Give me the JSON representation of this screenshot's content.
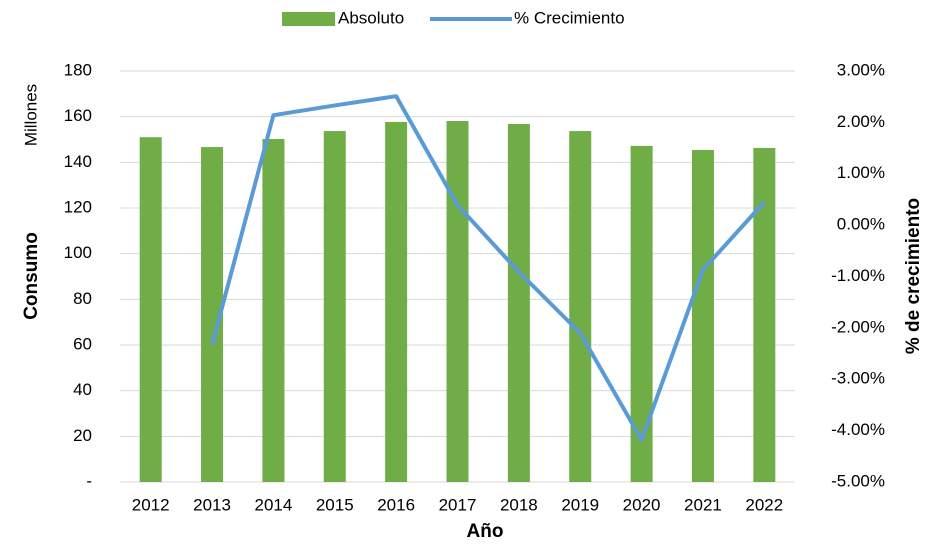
{
  "chart_data": {
    "type": "bar_line",
    "x_label": "Año",
    "y_label": "Consumo",
    "y_unit_label": "Millones",
    "y2_label": "% de crecimiento",
    "categories": [
      "2012",
      "2013",
      "2014",
      "2015",
      "2016",
      "2017",
      "2018",
      "2019",
      "2020",
      "2021",
      "2022"
    ],
    "series": [
      {
        "name": "Absoluto",
        "color": "#70ad47",
        "type": "bar",
        "axis": "y",
        "values": [
          151,
          146.7,
          150.2,
          153.7,
          157.7,
          158.1,
          156.8,
          153.7,
          147.2,
          145.4,
          146.3
        ]
      },
      {
        "name": "% Crecimiento",
        "color": "#5b9bd5",
        "type": "line",
        "axis": "y2",
        "values": [
          null,
          -2.33,
          2.14,
          2.33,
          2.51,
          0.39,
          -0.91,
          -2.1,
          -4.18,
          -0.87,
          0.45
        ]
      }
    ],
    "ylim": [
      0,
      180
    ],
    "yticks": [
      {
        "value": 0,
        "label": "-"
      },
      20,
      40,
      60,
      80,
      100,
      120,
      140,
      160,
      180
    ],
    "y2lim": [
      -5,
      3
    ],
    "y2ticks": [
      {
        "value": -5,
        "label": "-5.00%"
      },
      {
        "value": -4,
        "label": "-4.00%"
      },
      {
        "value": -3,
        "label": "-3.00%"
      },
      {
        "value": -2,
        "label": "-2.00%"
      },
      {
        "value": -1,
        "label": "-1.00%"
      },
      {
        "value": 0,
        "label": "0.00%"
      },
      {
        "value": 1,
        "label": "1.00%"
      },
      {
        "value": 2,
        "label": "2.00%"
      },
      {
        "value": 3,
        "label": "3.00%"
      }
    ],
    "grid": true,
    "legend": "top"
  }
}
